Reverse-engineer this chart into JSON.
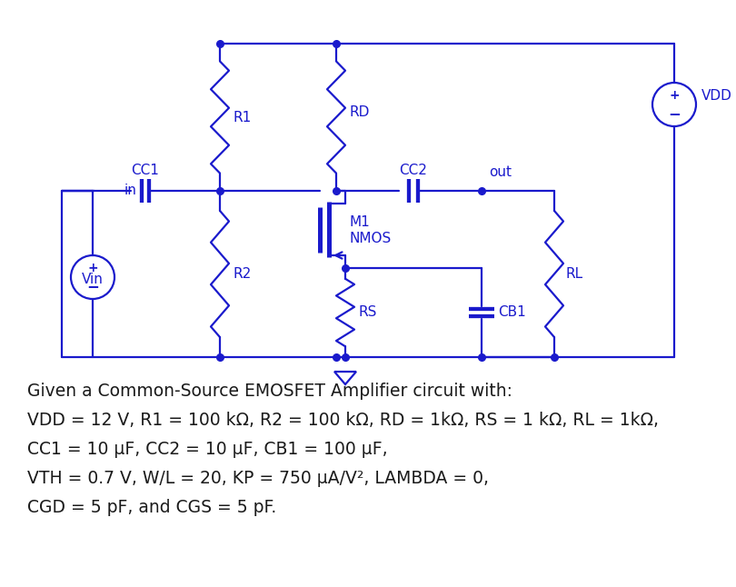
{
  "circuit_color": "#1a1acc",
  "bg_color": "#ffffff",
  "desc_color": "#1a1a1a",
  "description_lines": [
    "Given a Common-Source EMOSFET Amplifier circuit with:",
    "VDD = 12 V, R1 = 100 kΩ, R2 = 100 kΩ, RD = 1kΩ, RS = 1 kΩ, RL = 1kΩ,",
    "CC1 = 10 µF, CC2 = 10 µF, CB1 = 100 µF,",
    "VTH = 0.7 V, W/L = 20, KP = 750 µA/V², LAMBDA = 0,",
    "CGD = 5 pF, and CGS = 5 pF."
  ],
  "fig_width": 8.1,
  "fig_height": 6.46,
  "dpi": 100
}
